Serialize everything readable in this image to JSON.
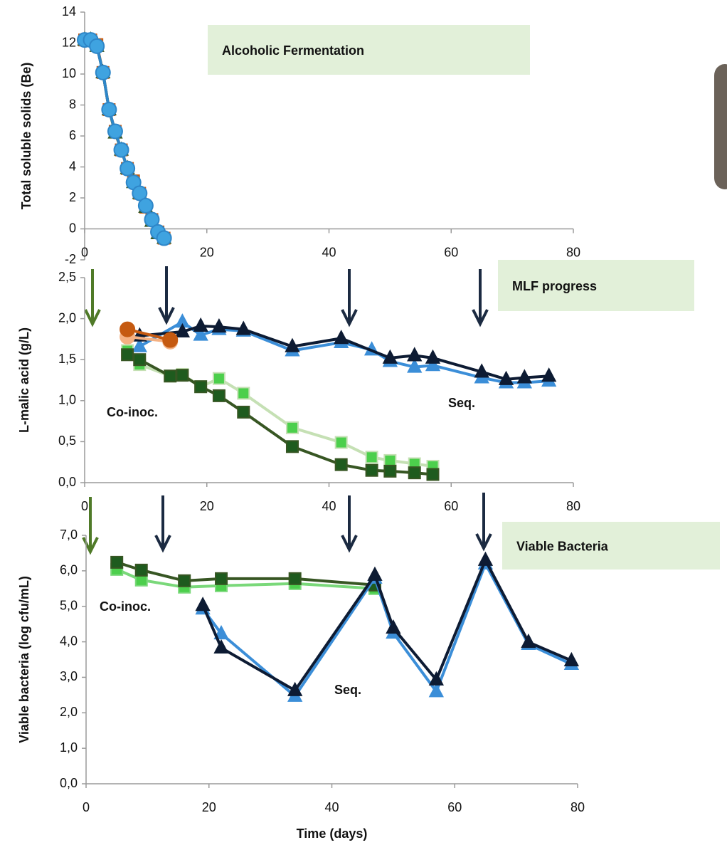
{
  "chart_data": [
    {
      "type": "line",
      "y_label": "Total soluble solids (Be)",
      "xlim": [
        0,
        80
      ],
      "xticks": [
        0,
        20,
        40,
        60,
        80
      ],
      "ylim": [
        -2,
        14
      ],
      "yticks": [
        -2,
        0,
        2,
        4,
        6,
        8,
        10,
        12,
        14
      ],
      "series": [
        {
          "color": "#ed7d31",
          "line_color": "#c55a11",
          "marker": "square",
          "x": [
            0,
            1,
            2,
            3,
            4,
            5,
            6,
            7,
            8,
            9,
            10,
            11,
            12,
            13
          ],
          "values": [
            12.2,
            12.2,
            11.9,
            10.1,
            7.7,
            6.3,
            5.1,
            3.9,
            3.1,
            2.3,
            1.4,
            0.6,
            -0.2,
            -0.6
          ]
        },
        {
          "color": "#548235",
          "line_color": "#385723",
          "marker": "triangle",
          "x": [
            0,
            1,
            2,
            3,
            4,
            5,
            6,
            7,
            8,
            9,
            10,
            11,
            12,
            13
          ],
          "values": [
            12.2,
            12.2,
            11.8,
            10.1,
            7.7,
            6.2,
            5.1,
            3.9,
            3.0,
            2.3,
            1.4,
            0.5,
            -0.3,
            -0.6
          ]
        },
        {
          "color": "#3fa3e0",
          "line_color": "#2e86c8",
          "marker": "circle",
          "x": [
            0,
            1,
            2,
            3,
            4,
            5,
            6,
            7,
            8,
            9,
            10,
            11,
            12,
            13
          ],
          "values": [
            12.2,
            12.2,
            11.8,
            10.1,
            7.7,
            6.3,
            5.1,
            3.9,
            3.0,
            2.3,
            1.5,
            0.6,
            -0.2,
            -0.6
          ]
        }
      ],
      "annotations": [
        {
          "text": "Alcoholic Fermentation",
          "color": "#000000"
        }
      ]
    },
    {
      "type": "line",
      "y_label": "L-malic acid (g/L)",
      "xlim": [
        0,
        80
      ],
      "xticks": [
        0,
        20,
        40,
        60,
        80
      ],
      "ylim": [
        0,
        2.5
      ],
      "yticks": [
        {
          "value": 0,
          "label": "0,0"
        },
        {
          "value": 0.5,
          "label": "0,5"
        },
        {
          "value": 1,
          "label": "1,0"
        },
        {
          "value": 1.5,
          "label": "1,5"
        },
        {
          "value": 2,
          "label": "2,0"
        },
        {
          "value": 2.5,
          "label": "2,5"
        }
      ],
      "series": [
        {
          "color": "#3b8ed8",
          "line_color": "#3b8ed8",
          "marker": "triangle",
          "x": [
            9,
            16,
            19,
            22,
            26,
            34,
            42,
            47,
            50,
            54,
            57,
            65,
            69,
            72,
            76
          ],
          "values": [
            1.66,
            1.96,
            1.8,
            1.87,
            1.85,
            1.61,
            1.71,
            1.62,
            1.48,
            1.41,
            1.43,
            1.28,
            1.22,
            1.22,
            1.24
          ]
        },
        {
          "color": "#0d1b33",
          "line_color": "#0d1b33",
          "marker": "triangle",
          "x": [
            9,
            16,
            19,
            22,
            26,
            34,
            42,
            50,
            54,
            57,
            65,
            69,
            72,
            76
          ],
          "values": [
            1.79,
            1.84,
            1.91,
            1.9,
            1.87,
            1.66,
            1.76,
            1.52,
            1.55,
            1.52,
            1.35,
            1.26,
            1.28,
            1.3
          ]
        },
        {
          "color": "#f4b183",
          "line_color": "#f4b183",
          "marker": "circle",
          "x": [
            7,
            14
          ],
          "values": [
            1.78,
            1.72
          ]
        },
        {
          "color": "#c55a11",
          "line_color": "#c55a11",
          "marker": "circle",
          "x": [
            7,
            14
          ],
          "values": [
            1.87,
            1.74
          ]
        },
        {
          "color": "#4ccf4c",
          "line_color": "#c5e0b4",
          "marker": "square",
          "x": [
            7,
            9,
            14,
            16,
            19,
            22,
            26,
            34,
            42,
            47,
            50,
            54,
            57
          ],
          "values": [
            1.61,
            1.44,
            1.3,
            1.32,
            1.17,
            1.27,
            1.09,
            0.67,
            0.49,
            0.31,
            0.27,
            0.23,
            0.2
          ]
        },
        {
          "color": "#1e5b1e",
          "line_color": "#375623",
          "marker": "square",
          "x": [
            7,
            9,
            14,
            16,
            19,
            22,
            26,
            34,
            42,
            47,
            50,
            54,
            57
          ],
          "values": [
            1.56,
            1.5,
            1.3,
            1.31,
            1.17,
            1.06,
            0.86,
            0.44,
            0.22,
            0.15,
            0.14,
            0.12,
            0.1
          ]
        }
      ],
      "annotations": [
        {
          "text": "MLF progress",
          "color": "#000000"
        },
        {
          "text": "Co-inoc.",
          "color": "#1e4d1e"
        },
        {
          "text": "Seq.",
          "color": "#1f4e79"
        }
      ]
    },
    {
      "type": "line",
      "y_label": "Viable bacteria (log cfu/mL)",
      "x_label": "Time (days)",
      "xlim": [
        0,
        80
      ],
      "xticks": [
        0,
        20,
        40,
        60,
        80
      ],
      "ylim": [
        0,
        7
      ],
      "yticks": [
        {
          "value": 0,
          "label": "0,0"
        },
        {
          "value": 1,
          "label": "1,0"
        },
        {
          "value": 2,
          "label": "2,0"
        },
        {
          "value": 3,
          "label": "3,0"
        },
        {
          "value": 4,
          "label": "4,0"
        },
        {
          "value": 5,
          "label": "5,0"
        },
        {
          "value": 6,
          "label": "6,0"
        },
        {
          "value": 7,
          "label": "7,0"
        }
      ],
      "series": [
        {
          "color": "#4ccf4c",
          "line_color": "#7ad87a",
          "marker": "square",
          "x": [
            5,
            9,
            16,
            22,
            34,
            47
          ],
          "values": [
            6.04,
            5.74,
            5.54,
            5.58,
            5.64,
            5.5
          ]
        },
        {
          "color": "#1e5b1e",
          "line_color": "#375623",
          "marker": "square",
          "x": [
            5,
            9,
            16,
            22,
            34,
            47
          ],
          "values": [
            6.24,
            6.02,
            5.72,
            5.78,
            5.78,
            5.6
          ]
        },
        {
          "color": "#3b8ed8",
          "line_color": "#3b8ed8",
          "marker": "triangle",
          "x": [
            19,
            22,
            34,
            47,
            50,
            57,
            65,
            72,
            79
          ],
          "values": [
            4.93,
            4.23,
            2.47,
            5.8,
            4.25,
            2.6,
            6.2,
            3.93,
            3.37
          ]
        },
        {
          "color": "#0d1b33",
          "line_color": "#0d1b33",
          "marker": "triangle",
          "x": [
            19,
            22,
            34,
            47,
            50,
            57,
            65,
            72,
            79
          ],
          "values": [
            5.03,
            3.83,
            2.63,
            5.88,
            4.39,
            2.93,
            6.3,
            3.99,
            3.47
          ]
        }
      ],
      "annotations": [
        {
          "text": "Viable Bacteria",
          "color": "#000000"
        },
        {
          "text": "Co-inoc.",
          "color": "#1e4d1e"
        },
        {
          "text": "Seq.",
          "color": "#1f4e79"
        }
      ]
    }
  ]
}
